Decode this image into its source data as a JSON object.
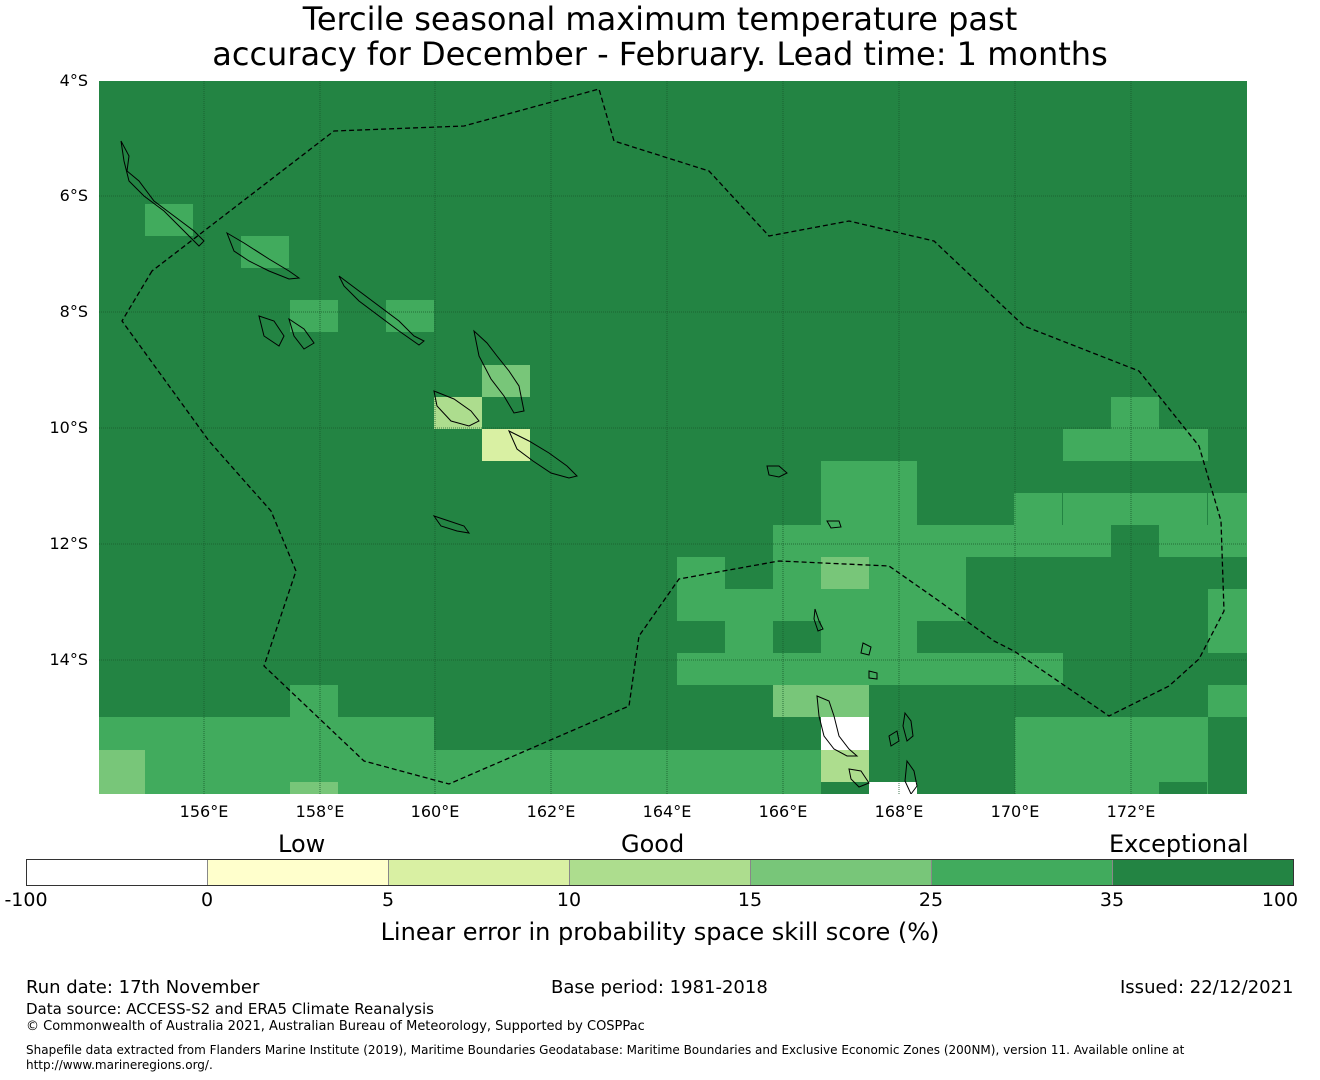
{
  "title": {
    "line1": "Tercile seasonal maximum temperature past",
    "line2": "accuracy for December - February. Lead time: 1 months"
  },
  "map": {
    "lat_labels": [
      "4°S",
      "6°S",
      "8°S",
      "10°S",
      "12°S",
      "14°S"
    ],
    "lon_labels": [
      "156°E",
      "158°E",
      "160°E",
      "162°E",
      "164°E",
      "166°E",
      "168°E",
      "170°E",
      "172°E"
    ]
  },
  "legend": {
    "category_low": "Low",
    "category_good": "Good",
    "category_exceptional": "Exceptional",
    "ticks": [
      "-100",
      "0",
      "5",
      "10",
      "15",
      "25",
      "35",
      "100"
    ],
    "colors": [
      "#ffffff",
      "#ffffcc",
      "#d9f0a3",
      "#addd8e",
      "#78c679",
      "#41ab5d",
      "#238443"
    ],
    "label": "Linear error in probability space skill score (%)"
  },
  "footer": {
    "run_date": "Run date: 17th November",
    "base_period": "Base period: 1981-2018",
    "issued": "Issued: 22/12/2021",
    "data_source": "Data source: ACCESS-S2 and ERA5 Climate Reanalysis",
    "copyright": "© Commonwealth of Australia 2021, Australian Bureau of Meteorology, Supported by COSPPac",
    "shapefile_line1": "Shapefile data extracted from Flanders Marine Institute (2019), Maritime Boundaries Geodatabase: Maritime Boundaries and Exclusive Economic Zones (200NM), version 11. Available online at",
    "shapefile_line2": "http://www.marineregions.org/."
  }
}
